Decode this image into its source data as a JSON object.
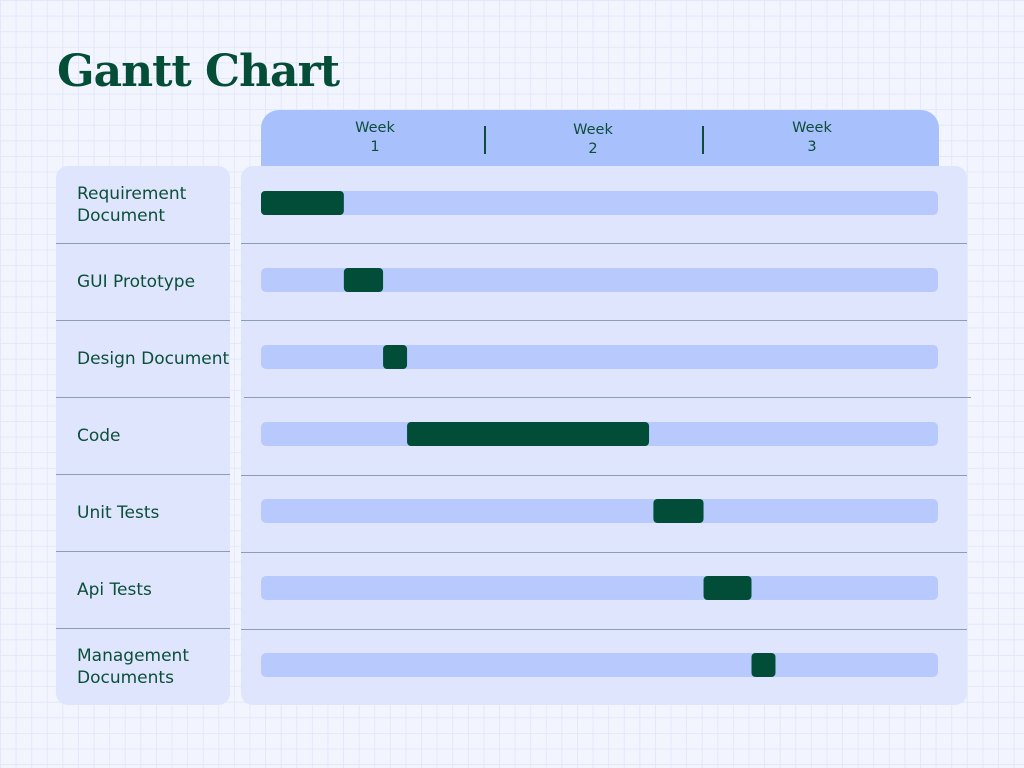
{
  "page": {
    "title": "Gantt Chart"
  },
  "colors": {
    "background": "#f3f5fe",
    "panel": "#dfe5fd",
    "header": "#a8c1fc",
    "track": "#b8cafd",
    "bar": "#024d38",
    "text": "#0b4f3a"
  },
  "chart_data": {
    "type": "gantt",
    "title": "Gantt Chart",
    "x_unit": "Week",
    "xlim": [
      0,
      3
    ],
    "weeks": [
      {
        "line1": "Week",
        "line2": "1"
      },
      {
        "line1": "Week",
        "line2": "2"
      },
      {
        "line1": "Week",
        "line2": "3"
      }
    ],
    "tasks": [
      {
        "name": "Requirement Document",
        "start": 0.0,
        "end": 0.38
      },
      {
        "name": "GUI Prototype",
        "start": 0.38,
        "end": 0.56
      },
      {
        "name": "Design Document",
        "start": 0.56,
        "end": 0.67
      },
      {
        "name": "Code",
        "start": 0.67,
        "end": 1.78
      },
      {
        "name": "Unit Tests",
        "start": 1.8,
        "end": 2.03
      },
      {
        "name": "Api Tests",
        "start": 2.03,
        "end": 2.25
      },
      {
        "name": "Management Documents",
        "start": 2.25,
        "end": 2.36
      }
    ]
  }
}
